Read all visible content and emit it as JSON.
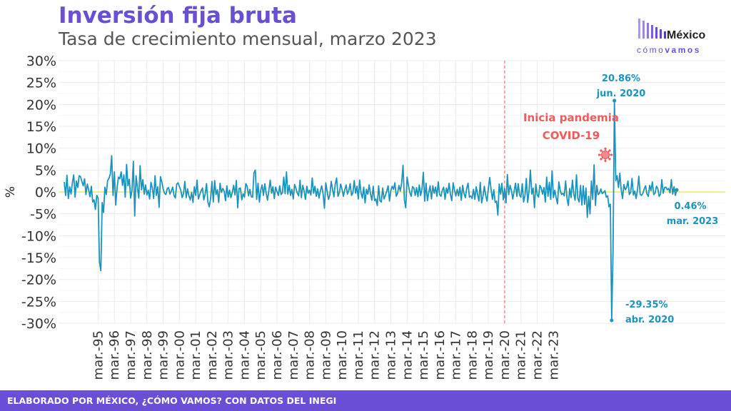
{
  "title": "Inversión fija bruta",
  "subtitle": "Tasa de crecimiento mensual, marzo 2023",
  "logo": {
    "word_top": "México",
    "word_bottom_light": "cómo",
    "word_bottom_bold": "vamos"
  },
  "footer": "ELABORADO POR MÉXICO, ¿CÓMO VAMOS? CON DATOS DEL INEGI",
  "colors": {
    "brand": "#6a4fd6",
    "line": "#1a93be",
    "pandemic": "#f05a5a",
    "zero_line": "#ece86a",
    "grid": "#ebebeb"
  },
  "chart_data": {
    "type": "line",
    "title": "Inversión fija bruta",
    "subtitle": "Tasa de crecimiento mensual, marzo 2023",
    "xlabel": "",
    "ylabel": "%",
    "ylim": [
      -30,
      30
    ],
    "y_ticks": [
      "30%",
      "25%",
      "20%",
      "15%",
      "10%",
      "5%",
      "0%",
      "-5%",
      "-10%",
      "-15%",
      "-20%",
      "-25%",
      "-30%"
    ],
    "x_ticks": [
      "mar.-95",
      "mar.-96",
      "mar.-97",
      "mar.-98",
      "mar.-99",
      "mar.-00",
      "mar.-01",
      "mar.-02",
      "mar.-03",
      "mar.-04",
      "mar.-05",
      "mar.-06",
      "mar.-07",
      "mar.-08",
      "mar.-09",
      "mar.-10",
      "mar.-11",
      "mar.-12",
      "mar.-13",
      "mar.-14",
      "mar.-15",
      "mar.-16",
      "mar.-17",
      "mar.-18",
      "mar.-19",
      "mar.-20",
      "mar.-21",
      "mar.-22",
      "mar.-23"
    ],
    "grid": true,
    "x_start": "1993-02",
    "x_end": "2023-03",
    "series": [
      {
        "name": "",
        "values": [
          2.3,
          -0.8,
          3.8,
          -1.5,
          1.2,
          -0.5,
          2.1,
          3.9,
          -1.2,
          2.5,
          1.0,
          3.7,
          3.5,
          2.4,
          1.4,
          3.0,
          -0.6,
          1.8,
          0.5,
          -1.1,
          1.3,
          -2.3,
          -1.8,
          -4.0,
          -0.8,
          -1.4,
          -16.0,
          -18.0,
          -2.4,
          -4.7,
          1.1,
          -0.6,
          2.6,
          3.1,
          4.1,
          8.3,
          -0.8,
          4.6,
          -3.0,
          1.0,
          3.4,
          3.0,
          4.6,
          1.5,
          3.9,
          -1.2,
          6.3,
          1.4,
          2.9,
          -1.4,
          0.3,
          7.0,
          -5.5,
          3.7,
          1.0,
          -1.4,
          6.0,
          0.5,
          2.8,
          -0.5,
          1.6,
          -0.7,
          0.4,
          -1.6,
          2.2,
          0.9,
          -1.5,
          3.7,
          -0.8,
          1.2,
          -3.5,
          3.5,
          2.3,
          0.7,
          -0.3,
          -0.6,
          0.8,
          1.0,
          -0.5,
          0.2,
          1.1,
          -0.8,
          -1.4,
          1.8,
          2.1,
          1.2,
          0.4,
          -1.3,
          -0.4,
          2.4,
          -1.3,
          0.7,
          -0.9,
          -1.8,
          -0.1,
          -2.4,
          1.2,
          -0.8,
          2.7,
          -1.6,
          -0.6,
          0.3,
          0.9,
          -1.8,
          -0.5,
          1.9,
          -2.3,
          -3.4,
          -1.5,
          2.4,
          -2.3,
          2.6,
          -0.6,
          0.5,
          -2.4,
          2.0,
          -0.1,
          0.8,
          0.2,
          -2.0,
          1.4,
          -1.2,
          0.4,
          -1.3,
          -0.1,
          1.5,
          -0.7,
          2.6,
          -3.6,
          0.8,
          0.9,
          -1.8,
          -0.4,
          -1.2,
          1.9,
          1.3,
          -0.9,
          0.6,
          -1.1,
          -1.2,
          4.4,
          5.0,
          -1.7,
          2.0,
          -2.3,
          0.4,
          1.6,
          -0.8,
          1.9,
          -0.3,
          -1.9,
          0.4,
          2.7,
          -0.3,
          1.2,
          -1.5,
          1.1,
          0.1,
          -0.8,
          1.4,
          -0.6,
          -0.2,
          3.4,
          -0.4,
          4.6,
          -0.5,
          1.5,
          -0.8,
          0.6,
          -1.6,
          1.7,
          0.8,
          -0.3,
          -0.9,
          2.7,
          -1.3,
          1.5,
          0.2,
          -1.7,
          1.3,
          -0.3,
          0.4,
          -0.7,
          3.2,
          -0.3,
          1.3,
          -1.0,
          0.7,
          -1.4,
          0.2,
          1.4,
          -0.4,
          -3.7,
          2.1,
          0.2,
          -1.7,
          -0.7,
          2.4,
          0.6,
          -1.1,
          1.8,
          3.2,
          -1.0,
          -0.2,
          1.8,
          0.6,
          -1.0,
          0.5,
          1.6,
          -0.5,
          0.3,
          1.9,
          -0.8,
          -0.2,
          2.6,
          -0.3,
          1.3,
          -1.6,
          2.7,
          -0.2,
          -1.4,
          1.1,
          -2.5,
          0.6,
          -0.5,
          1.6,
          -0.4,
          -1.9,
          1.3,
          -2.0,
          -1.6,
          -3.1,
          1.4,
          -2.0,
          -2.3,
          0.9,
          -1.6,
          -0.8,
          0.2,
          1.4,
          -2.1,
          0.3,
          1.3,
          0.6,
          2.1,
          -1.0,
          -0.3,
          1.5,
          0.2,
          2.1,
          6.1,
          -1.8,
          -3.6,
          3.4,
          1.5,
          -0.1,
          -1.0,
          1.2,
          0.9,
          -0.8,
          1.0,
          -1.1,
          1.6,
          -0.8,
          0.7,
          4.5,
          -2.1,
          2.0,
          -2.0,
          -0.1,
          1.4,
          -1.6,
          1.4,
          -0.3,
          1.1,
          -1.0,
          2.3,
          -0.6,
          -1.0,
          0.4,
          1.1,
          -1.7,
          0.9,
          -0.3,
          2.0,
          -0.6,
          -2.0,
          2.1,
          0.4,
          -0.9,
          0.6,
          -0.9,
          1.1,
          -1.9,
          1.5,
          -0.4,
          -1.3,
          0.8,
          2.0,
          -1.2,
          -0.9,
          -1.5,
          0.6,
          -1.7,
          1.2,
          -0.5,
          -2.1,
          2.2,
          -2.5,
          -1.0,
          1.3,
          -0.8,
          -2.1,
          0.9,
          3.3,
          0.5,
          -1.7,
          0.5,
          -2.4,
          -2.1,
          -5.3,
          1.8,
          -0.5,
          2.0,
          -1.8,
          0.8,
          -2.5,
          4.0,
          -0.6,
          1.5,
          0.3,
          -1.6,
          0.2,
          2.0,
          -1.0,
          1.9,
          -0.7,
          -1.2,
          1.9,
          -2.3,
          -0.8,
          3.1,
          -2.4,
          0.2,
          5.0,
          -0.5,
          0.9,
          -3.6,
          1.8,
          -0.6,
          -1.2,
          1.5,
          0.9,
          -0.5,
          1.0,
          -2.3,
          3.4,
          -1.0,
          2.2,
          -1.7,
          4.8,
          -1.3,
          0.4,
          -1.3,
          -2.7,
          2.3,
          0.3,
          -0.6,
          -0.3,
          -0.9,
          2.5,
          -1.4,
          -3.1,
          0.8,
          -1.3,
          2.7,
          -0.5,
          -1.9,
          3.9,
          -1.5,
          -2.3,
          1.5,
          -3.0,
          1.4,
          -2.8,
          0.9,
          -5.8,
          -1.0,
          -5.0,
          2.5,
          -1.7,
          6.2,
          -3.1,
          1.5,
          -0.6,
          -0.3,
          0.7,
          -0.4,
          -0.1,
          0.3,
          -1.2,
          -0.9,
          -3.4,
          -2.8,
          -29.35,
          -13.3,
          20.86,
          2.6,
          3.7,
          1.0,
          4.3,
          0.5,
          -1.5,
          1.7,
          0.5,
          1.0,
          2.5,
          -0.6,
          -0.1,
          3.1,
          -0.7,
          0.2,
          -1.5,
          0.4,
          3.6,
          -0.5,
          -0.8,
          -0.3,
          0.7,
          1.4,
          -0.5,
          -1.0,
          1.5,
          0.3,
          2.3,
          -0.6,
          -0.3,
          1.3,
          0.8,
          -1.0,
          -0.5,
          2.8,
          -0.3,
          1.0,
          1.1,
          0.5,
          0.8,
          -0.2,
          2.8,
          -0.5,
          1.2,
          -0.8,
          0.46
        ]
      }
    ],
    "annotations": {
      "max": {
        "value_label": "20.86%",
        "date_label": "jun. 2020"
      },
      "min": {
        "value_label": "-29.35%",
        "date_label": "abr. 2020"
      },
      "last": {
        "value_label": "0.46%",
        "date_label": "mar. 2023"
      },
      "pandemic": {
        "line1": "Inicia pandemia",
        "line2": "COVID-19",
        "date": "2020-03"
      }
    }
  }
}
